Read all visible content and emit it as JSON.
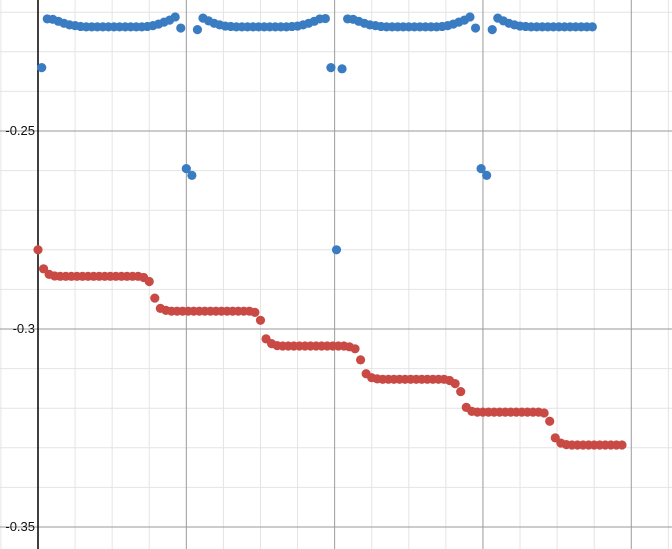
{
  "chart_data": {
    "type": "scatter",
    "title": "",
    "xlabel": "",
    "ylabel": "",
    "grid": true,
    "xlim": [
      -0.1,
      15.9
    ],
    "ylim": [
      -0.354,
      -0.218
    ],
    "yticks": [
      {
        "value": -0.25,
        "label": "-0.25"
      },
      {
        "value": -0.3,
        "label": "-0.3"
      },
      {
        "value": -0.35,
        "label": "-0.35"
      }
    ],
    "colors": {
      "blue": "#3a7cc2",
      "red": "#c94a44",
      "grid_minor": "#e4e4e4",
      "grid_major": "#9a9a9a",
      "axis": "#000000"
    },
    "series": [
      {
        "color": "#3a7cc2",
        "points": [
          [
            0.1,
            -0.234
          ],
          [
            0.25,
            -0.2217
          ],
          [
            0.4,
            -0.2218
          ],
          [
            0.55,
            -0.2223
          ],
          [
            0.7,
            -0.2228
          ],
          [
            0.85,
            -0.2232
          ],
          [
            1.0,
            -0.2234
          ],
          [
            1.15,
            -0.2236
          ],
          [
            1.3,
            -0.2237
          ],
          [
            1.45,
            -0.2237
          ],
          [
            1.6,
            -0.2237
          ],
          [
            1.75,
            -0.2237
          ],
          [
            1.9,
            -0.2237
          ],
          [
            2.05,
            -0.2237
          ],
          [
            2.2,
            -0.2237
          ],
          [
            2.35,
            -0.2237
          ],
          [
            2.5,
            -0.2237
          ],
          [
            2.65,
            -0.2237
          ],
          [
            2.8,
            -0.2237
          ],
          [
            2.95,
            -0.2236
          ],
          [
            3.1,
            -0.2234
          ],
          [
            3.25,
            -0.223
          ],
          [
            3.4,
            -0.2225
          ],
          [
            3.55,
            -0.222
          ],
          [
            3.7,
            -0.2212
          ],
          [
            3.85,
            -0.224
          ],
          [
            4.0,
            -0.2595
          ],
          [
            4.15,
            -0.2612
          ],
          [
            4.3,
            -0.2244
          ],
          [
            4.45,
            -0.2215
          ],
          [
            4.6,
            -0.2222
          ],
          [
            4.75,
            -0.2228
          ],
          [
            4.9,
            -0.2232
          ],
          [
            5.05,
            -0.2235
          ],
          [
            5.2,
            -0.2236
          ],
          [
            5.35,
            -0.2237
          ],
          [
            5.5,
            -0.2237
          ],
          [
            5.65,
            -0.2237
          ],
          [
            5.8,
            -0.2237
          ],
          [
            5.95,
            -0.2237
          ],
          [
            6.1,
            -0.2237
          ],
          [
            6.25,
            -0.2237
          ],
          [
            6.4,
            -0.2237
          ],
          [
            6.55,
            -0.2237
          ],
          [
            6.7,
            -0.2237
          ],
          [
            6.85,
            -0.2236
          ],
          [
            7.0,
            -0.2235
          ],
          [
            7.15,
            -0.2232
          ],
          [
            7.3,
            -0.2228
          ],
          [
            7.45,
            -0.2223
          ],
          [
            7.6,
            -0.2217
          ],
          [
            7.75,
            -0.2216
          ],
          [
            7.9,
            -0.234
          ],
          [
            8.05,
            -0.28
          ],
          [
            8.2,
            -0.2343
          ],
          [
            8.35,
            -0.2217
          ],
          [
            8.5,
            -0.2218
          ],
          [
            8.65,
            -0.2223
          ],
          [
            8.8,
            -0.2228
          ],
          [
            8.95,
            -0.2232
          ],
          [
            9.1,
            -0.2234
          ],
          [
            9.25,
            -0.2236
          ],
          [
            9.4,
            -0.2237
          ],
          [
            9.55,
            -0.2237
          ],
          [
            9.7,
            -0.2237
          ],
          [
            9.85,
            -0.2237
          ],
          [
            10.0,
            -0.2237
          ],
          [
            10.15,
            -0.2237
          ],
          [
            10.3,
            -0.2237
          ],
          [
            10.45,
            -0.2237
          ],
          [
            10.6,
            -0.2237
          ],
          [
            10.75,
            -0.2237
          ],
          [
            10.9,
            -0.2236
          ],
          [
            11.05,
            -0.2234
          ],
          [
            11.2,
            -0.223
          ],
          [
            11.35,
            -0.2225
          ],
          [
            11.5,
            -0.222
          ],
          [
            11.65,
            -0.2212
          ],
          [
            11.8,
            -0.224
          ],
          [
            11.95,
            -0.2595
          ],
          [
            12.1,
            -0.2612
          ],
          [
            12.25,
            -0.2244
          ],
          [
            12.4,
            -0.2215
          ],
          [
            12.55,
            -0.2222
          ],
          [
            12.7,
            -0.2228
          ],
          [
            12.85,
            -0.2232
          ],
          [
            13.0,
            -0.2235
          ],
          [
            13.15,
            -0.2236
          ],
          [
            13.3,
            -0.2237
          ],
          [
            13.45,
            -0.2237
          ],
          [
            13.6,
            -0.2237
          ],
          [
            13.75,
            -0.2237
          ],
          [
            13.9,
            -0.2237
          ],
          [
            14.05,
            -0.2237
          ],
          [
            14.2,
            -0.2237
          ],
          [
            14.35,
            -0.2237
          ],
          [
            14.5,
            -0.2237
          ],
          [
            14.65,
            -0.2237
          ],
          [
            14.8,
            -0.2237
          ],
          [
            14.95,
            -0.2237
          ]
        ]
      },
      {
        "color": "#c94a44",
        "points": [
          [
            0.0,
            -0.28
          ],
          [
            0.15,
            -0.2848
          ],
          [
            0.3,
            -0.2862
          ],
          [
            0.45,
            -0.2866
          ],
          [
            0.6,
            -0.2867
          ],
          [
            0.75,
            -0.2867
          ],
          [
            0.9,
            -0.2867
          ],
          [
            1.05,
            -0.2867
          ],
          [
            1.2,
            -0.2867
          ],
          [
            1.35,
            -0.2867
          ],
          [
            1.5,
            -0.2867
          ],
          [
            1.65,
            -0.2867
          ],
          [
            1.8,
            -0.2867
          ],
          [
            1.95,
            -0.2867
          ],
          [
            2.1,
            -0.2867
          ],
          [
            2.25,
            -0.2867
          ],
          [
            2.4,
            -0.2867
          ],
          [
            2.55,
            -0.2867
          ],
          [
            2.7,
            -0.2867
          ],
          [
            2.85,
            -0.287
          ],
          [
            3.0,
            -0.288
          ],
          [
            3.15,
            -0.2922
          ],
          [
            3.3,
            -0.2948
          ],
          [
            3.45,
            -0.2953
          ],
          [
            3.6,
            -0.2955
          ],
          [
            3.75,
            -0.2955
          ],
          [
            3.9,
            -0.2955
          ],
          [
            4.05,
            -0.2955
          ],
          [
            4.2,
            -0.2955
          ],
          [
            4.35,
            -0.2955
          ],
          [
            4.5,
            -0.2955
          ],
          [
            4.65,
            -0.2955
          ],
          [
            4.8,
            -0.2955
          ],
          [
            4.95,
            -0.2955
          ],
          [
            5.1,
            -0.2955
          ],
          [
            5.25,
            -0.2955
          ],
          [
            5.4,
            -0.2955
          ],
          [
            5.55,
            -0.2955
          ],
          [
            5.7,
            -0.2955
          ],
          [
            5.85,
            -0.2958
          ],
          [
            6.0,
            -0.2978
          ],
          [
            6.15,
            -0.3025
          ],
          [
            6.3,
            -0.3037
          ],
          [
            6.45,
            -0.3042
          ],
          [
            6.6,
            -0.3043
          ],
          [
            6.75,
            -0.3043
          ],
          [
            6.9,
            -0.3043
          ],
          [
            7.05,
            -0.3043
          ],
          [
            7.2,
            -0.3043
          ],
          [
            7.35,
            -0.3043
          ],
          [
            7.5,
            -0.3043
          ],
          [
            7.65,
            -0.3043
          ],
          [
            7.8,
            -0.3043
          ],
          [
            7.95,
            -0.3043
          ],
          [
            8.1,
            -0.3043
          ],
          [
            8.25,
            -0.3043
          ],
          [
            8.4,
            -0.3045
          ],
          [
            8.55,
            -0.305
          ],
          [
            8.7,
            -0.3078
          ],
          [
            8.85,
            -0.3113
          ],
          [
            9.0,
            -0.3123
          ],
          [
            9.15,
            -0.3126
          ],
          [
            9.3,
            -0.3127
          ],
          [
            9.45,
            -0.3127
          ],
          [
            9.6,
            -0.3127
          ],
          [
            9.75,
            -0.3127
          ],
          [
            9.9,
            -0.3127
          ],
          [
            10.05,
            -0.3127
          ],
          [
            10.2,
            -0.3127
          ],
          [
            10.35,
            -0.3127
          ],
          [
            10.5,
            -0.3127
          ],
          [
            10.65,
            -0.3127
          ],
          [
            10.8,
            -0.3127
          ],
          [
            10.95,
            -0.3127
          ],
          [
            11.1,
            -0.313
          ],
          [
            11.25,
            -0.3138
          ],
          [
            11.4,
            -0.3158
          ],
          [
            11.55,
            -0.3198
          ],
          [
            11.7,
            -0.3208
          ],
          [
            11.85,
            -0.321
          ],
          [
            12.0,
            -0.321
          ],
          [
            12.15,
            -0.321
          ],
          [
            12.3,
            -0.321
          ],
          [
            12.45,
            -0.321
          ],
          [
            12.6,
            -0.321
          ],
          [
            12.75,
            -0.321
          ],
          [
            12.9,
            -0.321
          ],
          [
            13.05,
            -0.321
          ],
          [
            13.2,
            -0.321
          ],
          [
            13.35,
            -0.321
          ],
          [
            13.5,
            -0.321
          ],
          [
            13.65,
            -0.3212
          ],
          [
            13.8,
            -0.3233
          ],
          [
            13.95,
            -0.3275
          ],
          [
            14.1,
            -0.3288
          ],
          [
            14.25,
            -0.3292
          ],
          [
            14.4,
            -0.3293
          ],
          [
            14.55,
            -0.3293
          ],
          [
            14.7,
            -0.3293
          ],
          [
            14.85,
            -0.3293
          ],
          [
            15.0,
            -0.3293
          ],
          [
            15.15,
            -0.3293
          ],
          [
            15.3,
            -0.3293
          ],
          [
            15.45,
            -0.3293
          ],
          [
            15.6,
            -0.3293
          ],
          [
            15.75,
            -0.3293
          ]
        ]
      }
    ]
  }
}
